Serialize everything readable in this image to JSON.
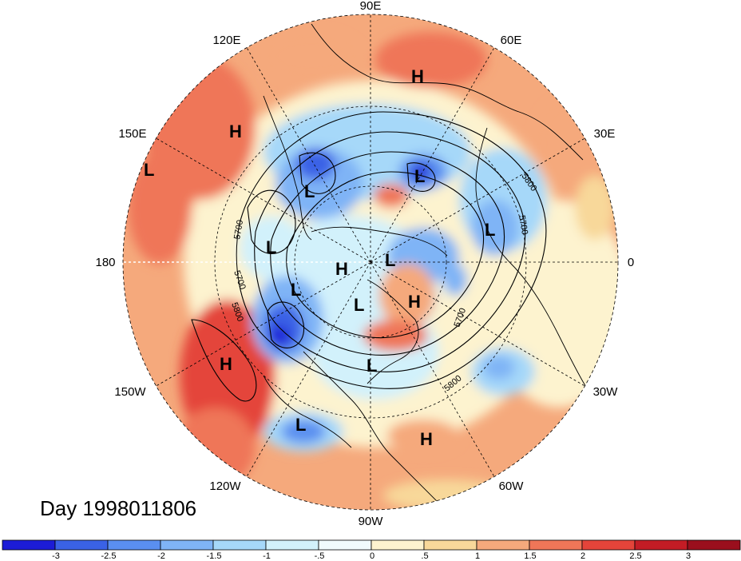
{
  "map": {
    "title": "Day 1998011806",
    "projection": "north polar stereographic",
    "longitude_labels": [
      "90E",
      "60E",
      "30E",
      "0",
      "30W",
      "60W",
      "90W",
      "120W",
      "150W",
      "180",
      "150E",
      "120E"
    ],
    "contour_labels": [
      "5700",
      "5700",
      "5700",
      "5800",
      "5800",
      "5800",
      "5700"
    ],
    "pressure_centers": [
      {
        "name": "H-north-asia",
        "label": "H"
      },
      {
        "name": "H-east-asia",
        "label": "H"
      },
      {
        "name": "L-west-pacific",
        "label": "L"
      },
      {
        "name": "L-siberia-1",
        "label": "L"
      },
      {
        "name": "L-siberia-2",
        "label": "L"
      },
      {
        "name": "L-europe",
        "label": "L"
      },
      {
        "name": "L-bering",
        "label": "L"
      },
      {
        "name": "H-arctic",
        "label": "H"
      },
      {
        "name": "L-arctic",
        "label": "L"
      },
      {
        "name": "L-alaska",
        "label": "L"
      },
      {
        "name": "L-canada",
        "label": "L"
      },
      {
        "name": "H-greenland",
        "label": "H"
      },
      {
        "name": "L-east-us",
        "label": "L"
      },
      {
        "name": "H-pacific",
        "label": "H"
      },
      {
        "name": "L-mexico",
        "label": "L"
      },
      {
        "name": "H-caribbean",
        "label": "H"
      }
    ]
  },
  "colorbar": {
    "ticks": [
      "-3",
      "-2.5",
      "-2",
      "-1.5",
      "-1",
      "-.5",
      "0",
      ".5",
      "1",
      "1.5",
      "2",
      "2.5",
      "3"
    ],
    "colors": [
      "#1c1cd6",
      "#3a62e6",
      "#5a8ff0",
      "#7fb4f6",
      "#a6d8f9",
      "#d2f1fb",
      "#f1fbfd",
      "#fdf3cf",
      "#f8d89a",
      "#f5a97c",
      "#ef7658",
      "#e4443a",
      "#c31c25",
      "#9a0f1d"
    ]
  }
}
